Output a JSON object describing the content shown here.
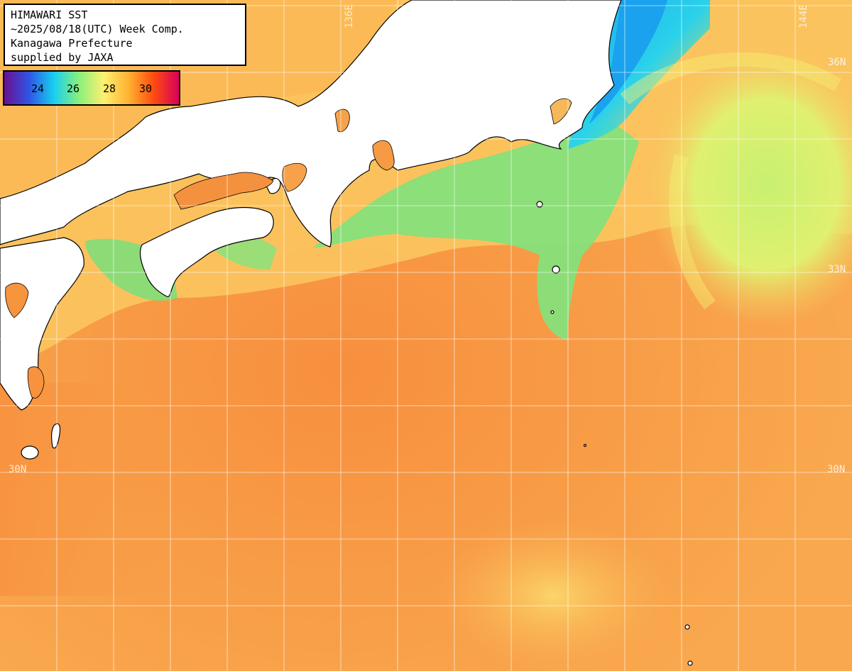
{
  "title": {
    "lines": [
      "HIMAWARI SST",
      "~2025/08/18(UTC) Week Comp.",
      "Kanagawa Prefecture",
      "supplied by JAXA"
    ]
  },
  "color_scale": {
    "ticks": [
      "24",
      "26",
      "28",
      "30"
    ],
    "colors": [
      "#6a0f8f",
      "#2f55e6",
      "#18d0f0",
      "#8af07a",
      "#fff070",
      "#ffb030",
      "#ff4a10",
      "#d8005a"
    ]
  },
  "grid_labels": {
    "lat": [
      "36N",
      "33N",
      "30N",
      "30N"
    ],
    "lon": [
      "136E",
      "144E"
    ]
  },
  "colors": {
    "land": "#ffffff",
    "coast": "#000000",
    "warm_sea": "#f7a04a",
    "cool_sea": "#7be07a",
    "cold_sea": "#1fc2ee",
    "grid": "#ffffff"
  }
}
